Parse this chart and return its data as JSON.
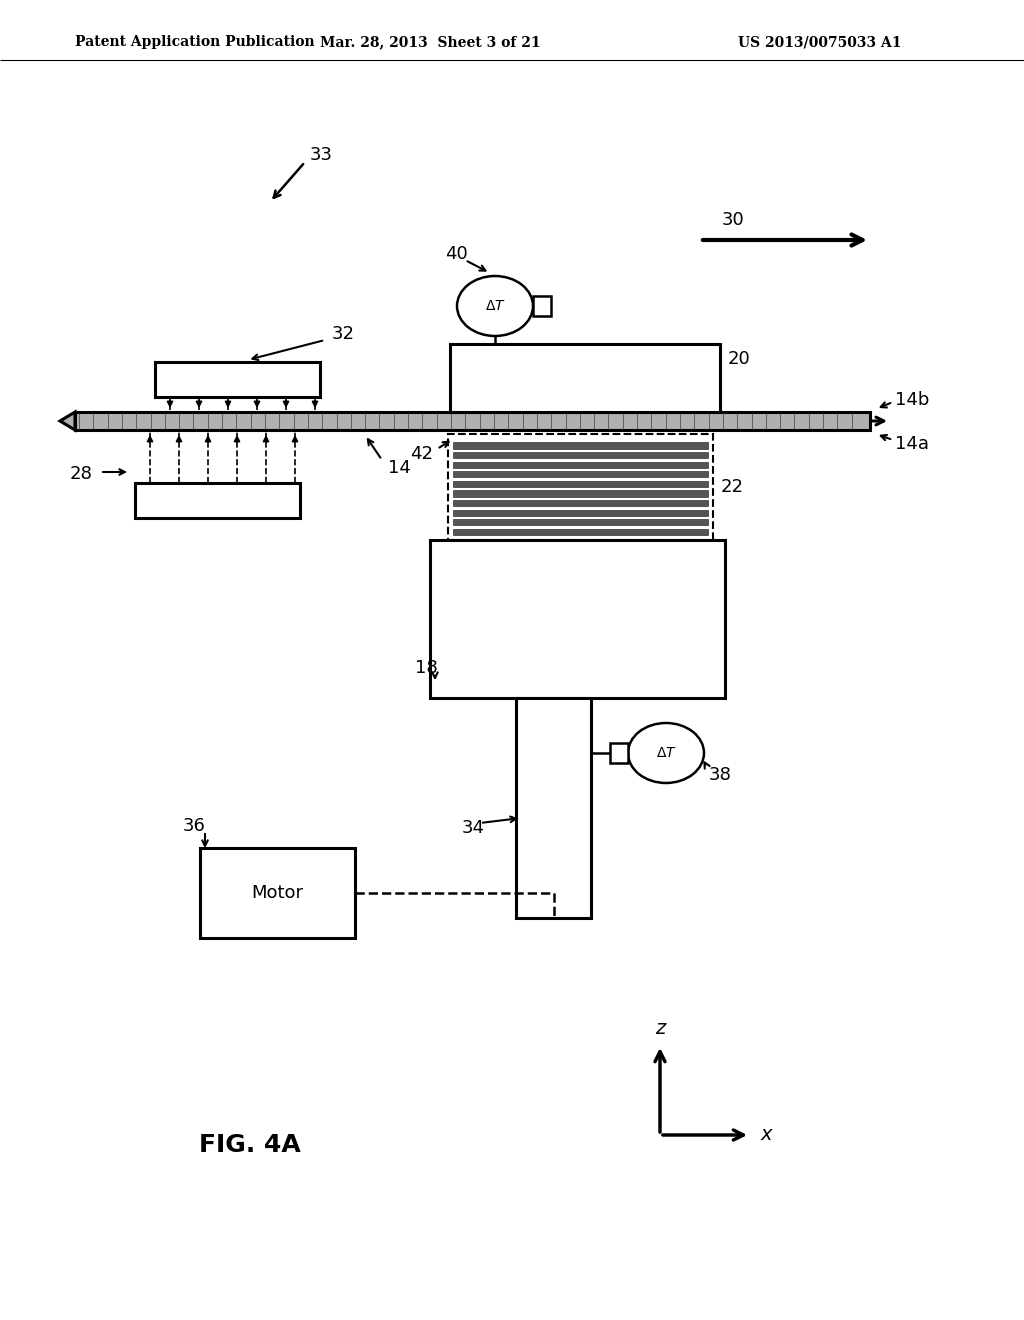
{
  "bg_color": "#ffffff",
  "header_left": "Patent Application Publication",
  "header_center": "Mar. 28, 2013  Sheet 3 of 21",
  "header_right": "US 2013/0075033 A1",
  "fig_label": "FIG. 4A"
}
